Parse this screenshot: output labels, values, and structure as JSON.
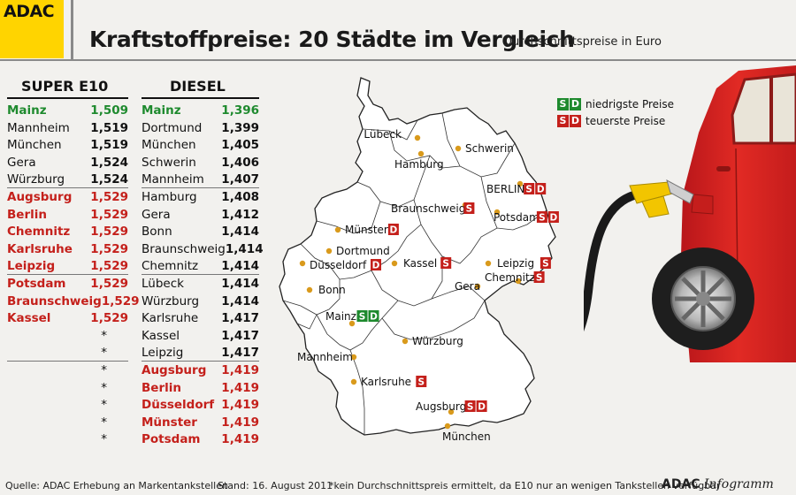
{
  "header": {
    "logo": "ADAC",
    "title": "Kraftstoffpreise: 20 Städte im Vergleich",
    "subtitle": "Durchschnittspreise in Euro"
  },
  "legend": {
    "low_label": "niedrigste Preise",
    "high_label": "teuerste Preise",
    "badge_s": "S",
    "badge_d": "D"
  },
  "chart_data": [
    {
      "type": "table",
      "title": "SUPER E10",
      "rows": [
        {
          "city": "Mainz",
          "price": "1,509",
          "status": "low"
        },
        {
          "city": "Mannheim",
          "price": "1,519",
          "status": "normal"
        },
        {
          "city": "München",
          "price": "1,519",
          "status": "normal"
        },
        {
          "city": "Gera",
          "price": "1,524",
          "status": "normal"
        },
        {
          "city": "Würzburg",
          "price": "1,524",
          "status": "normal"
        },
        {
          "city": "Augsburg",
          "price": "1,529",
          "status": "high"
        },
        {
          "city": "Berlin",
          "price": "1,529",
          "status": "high"
        },
        {
          "city": "Chemnitz",
          "price": "1,529",
          "status": "high"
        },
        {
          "city": "Karlsruhe",
          "price": "1,529",
          "status": "high"
        },
        {
          "city": "Leipzig",
          "price": "1,529",
          "status": "high"
        },
        {
          "city": "Potsdam",
          "price": "1,529",
          "status": "high"
        },
        {
          "city": "Braunschweig",
          "price": "1,529",
          "status": "high"
        },
        {
          "city": "Kassel",
          "price": "1,529",
          "status": "high"
        },
        {
          "city": "",
          "price": "*",
          "status": "na"
        },
        {
          "city": "",
          "price": "*",
          "status": "na"
        },
        {
          "city": "",
          "price": "*",
          "status": "na"
        },
        {
          "city": "",
          "price": "*",
          "status": "na"
        },
        {
          "city": "",
          "price": "*",
          "status": "na"
        },
        {
          "city": "",
          "price": "*",
          "status": "na"
        },
        {
          "city": "",
          "price": "*",
          "status": "na"
        }
      ]
    },
    {
      "type": "table",
      "title": "DIESEL",
      "rows": [
        {
          "city": "Mainz",
          "price": "1,396",
          "status": "low"
        },
        {
          "city": "Dortmund",
          "price": "1,399",
          "status": "normal"
        },
        {
          "city": "München",
          "price": "1,405",
          "status": "normal"
        },
        {
          "city": "Schwerin",
          "price": "1,406",
          "status": "normal"
        },
        {
          "city": "Mannheim",
          "price": "1,407",
          "status": "normal"
        },
        {
          "city": "Hamburg",
          "price": "1,408",
          "status": "normal"
        },
        {
          "city": "Gera",
          "price": "1,412",
          "status": "normal"
        },
        {
          "city": "Bonn",
          "price": "1,414",
          "status": "normal"
        },
        {
          "city": "Braunschweig",
          "price": "1,414",
          "status": "normal"
        },
        {
          "city": "Chemnitz",
          "price": "1,414",
          "status": "normal"
        },
        {
          "city": "Lübeck",
          "price": "1,414",
          "status": "normal"
        },
        {
          "city": "Würzburg",
          "price": "1,414",
          "status": "normal"
        },
        {
          "city": "Karlsruhe",
          "price": "1,417",
          "status": "normal"
        },
        {
          "city": "Kassel",
          "price": "1,417",
          "status": "normal"
        },
        {
          "city": "Leipzig",
          "price": "1,417",
          "status": "normal"
        },
        {
          "city": "Augsburg",
          "price": "1,419",
          "status": "high"
        },
        {
          "city": "Berlin",
          "price": "1,419",
          "status": "high"
        },
        {
          "city": "Düsseldorf",
          "price": "1,419",
          "status": "high"
        },
        {
          "city": "Münster",
          "price": "1,419",
          "status": "high"
        },
        {
          "city": "Potsdam",
          "price": "1,419",
          "status": "high"
        }
      ]
    }
  ],
  "map_cities": [
    {
      "name": "Lübeck",
      "badges": []
    },
    {
      "name": "Schwerin",
      "badges": []
    },
    {
      "name": "Hamburg",
      "badges": []
    },
    {
      "name": "BERLIN",
      "badges": [
        {
          "t": "S",
          "c": "high"
        },
        {
          "t": "D",
          "c": "high"
        }
      ]
    },
    {
      "name": "Braunschweig",
      "badges": [
        {
          "t": "S",
          "c": "high"
        }
      ]
    },
    {
      "name": "Potsdam",
      "badges": [
        {
          "t": "S",
          "c": "high"
        },
        {
          "t": "D",
          "c": "high"
        }
      ]
    },
    {
      "name": "Münster",
      "badges": [
        {
          "t": "D",
          "c": "high"
        }
      ]
    },
    {
      "name": "Dortmund",
      "badges": []
    },
    {
      "name": "Düsseldorf",
      "badges": [
        {
          "t": "D",
          "c": "high"
        }
      ]
    },
    {
      "name": "Kassel",
      "badges": [
        {
          "t": "S",
          "c": "high"
        }
      ]
    },
    {
      "name": "Leipzig",
      "badges": [
        {
          "t": "S",
          "c": "high"
        }
      ]
    },
    {
      "name": "Chemnitz",
      "badges": [
        {
          "t": "S",
          "c": "high"
        }
      ]
    },
    {
      "name": "Gera",
      "badges": []
    },
    {
      "name": "Bonn",
      "badges": []
    },
    {
      "name": "Mainz",
      "badges": [
        {
          "t": "S",
          "c": "low"
        },
        {
          "t": "D",
          "c": "low"
        }
      ]
    },
    {
      "name": "Würzburg",
      "badges": []
    },
    {
      "name": "Mannheim",
      "badges": []
    },
    {
      "name": "Karlsruhe",
      "badges": [
        {
          "t": "S",
          "c": "high"
        }
      ]
    },
    {
      "name": "Augsburg",
      "badges": [
        {
          "t": "S",
          "c": "high"
        },
        {
          "t": "D",
          "c": "high"
        }
      ]
    },
    {
      "name": "München",
      "badges": []
    }
  ],
  "footer": {
    "source": "Quelle: ADAC Erhebung an Markentankstellen",
    "date": "Stand: 16. August 2011",
    "note": "*kein Durchschnittspreis ermittelt, da E10 nur an wenigen Tankstellen verfügbar",
    "brand_bold": "ADAC",
    "brand_italic": "Infogramm"
  },
  "colors": {
    "low": "#1e8a2e",
    "high": "#c4201b",
    "logo_bg": "#ffd400",
    "city_dot": "#d99a1c",
    "car": "#d8231f"
  }
}
